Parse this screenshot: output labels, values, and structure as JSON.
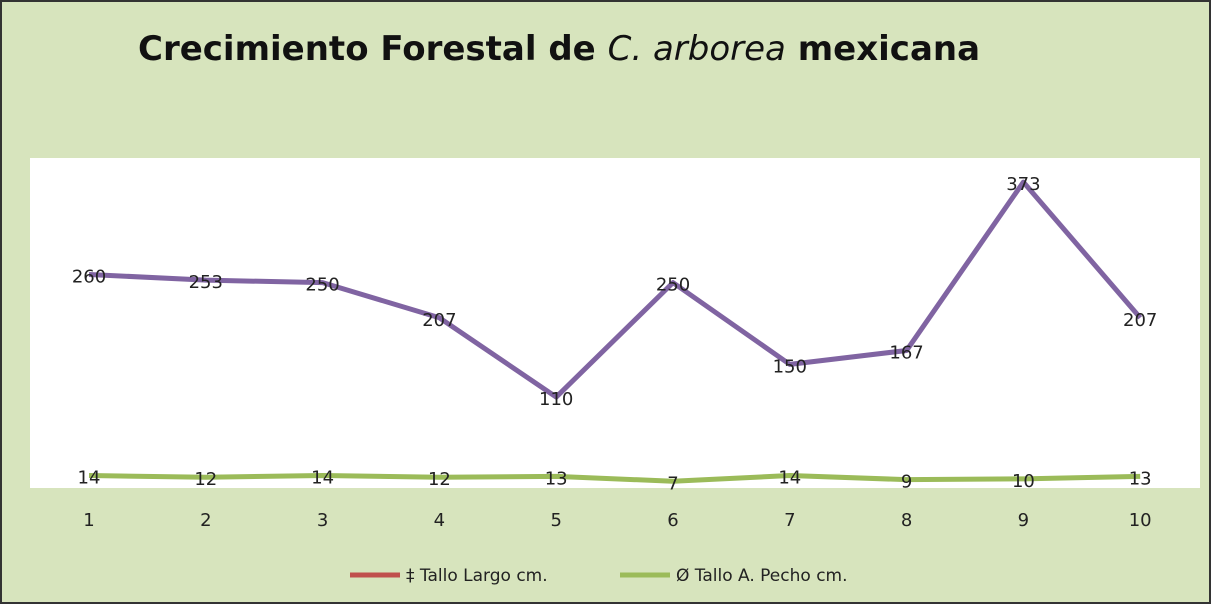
{
  "chart_data": {
    "type": "line",
    "title": [
      "Crecimiento Forestal de",
      "C. arborea",
      "mexicana"
    ],
    "categories": [
      "1",
      "2",
      "3",
      "4",
      "5",
      "6",
      "7",
      "8",
      "9",
      "10"
    ],
    "series": [
      {
        "name": "‡ Tallo Largo cm.",
        "color": "#8064a2",
        "legend_color": "#c0504d",
        "values": [
          260,
          253,
          250,
          207,
          110,
          250,
          150,
          167,
          373,
          207
        ]
      },
      {
        "name": "Ø Tallo A. Pecho cm.",
        "color": "#9bbb59",
        "legend_color": "#9bbb59",
        "values": [
          14,
          12,
          14,
          12,
          13,
          7,
          14,
          9,
          10,
          13
        ]
      }
    ],
    "ylim": [
      0,
      400
    ],
    "legend": "bottom"
  }
}
